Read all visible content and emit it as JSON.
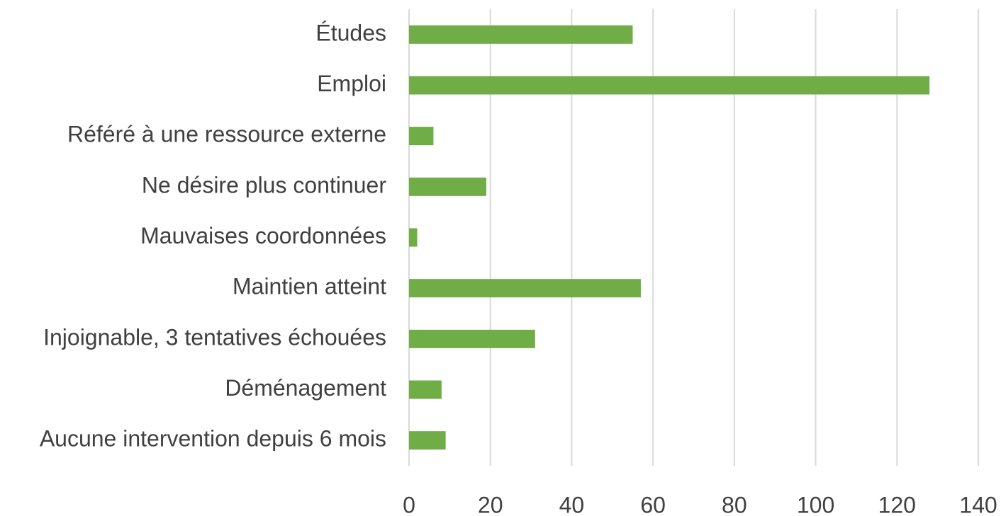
{
  "chart_data": {
    "type": "barh",
    "categories": [
      "Études",
      "Emploi",
      "Référé à une ressource externe",
      "Ne désire plus continuer",
      "Mauvaises coordonnées",
      "Maintien atteint",
      "Injoignable, 3 tentatives échouées",
      "Déménagement",
      "Aucune intervention depuis 6 mois"
    ],
    "values": [
      55,
      128,
      6,
      19,
      2,
      57,
      31,
      8,
      9
    ],
    "color": "#70ad47",
    "xlim": [
      0,
      140
    ],
    "xticks": [
      0,
      20,
      40,
      60,
      80,
      100,
      120,
      140
    ],
    "grid": true
  }
}
